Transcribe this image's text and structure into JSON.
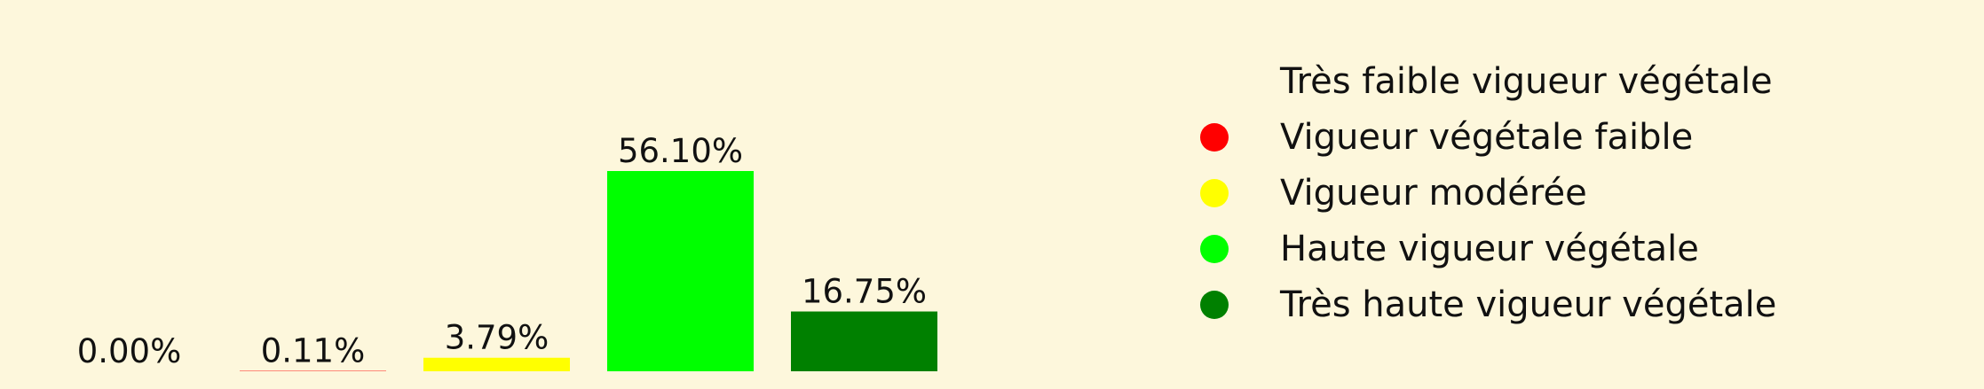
{
  "chart_data": {
    "type": "bar",
    "categories": [
      "Très faible vigueur végétale",
      "Vigueur végétale faible",
      "Vigueur modérée",
      "Haute vigueur végétale",
      "Très haute vigueur végétale"
    ],
    "values": [
      0.0,
      0.11,
      3.79,
      56.1,
      16.75
    ],
    "value_labels": [
      "0.00%",
      "0.11%",
      "3.79%",
      "56.10%",
      "16.75%"
    ],
    "colors": [
      "#fdf7dc",
      "#ff0000",
      "#ffff00",
      "#00ff00",
      "#008000"
    ],
    "title": "",
    "xlabel": "",
    "ylabel": "",
    "ylim": [
      0,
      56.1
    ],
    "grid": false,
    "legend_position": "right"
  },
  "legend": {
    "items": [
      {
        "label": "Très faible vigueur végétale",
        "color": "#fdf7dc"
      },
      {
        "label": "Vigueur végétale faible",
        "color": "#ff0000"
      },
      {
        "label": "Vigueur modérée",
        "color": "#ffff00"
      },
      {
        "label": "Haute vigueur végétale",
        "color": "#00ff00"
      },
      {
        "label": "Très haute vigueur végétale",
        "color": "#008000"
      }
    ]
  },
  "background": "#fdf7dc"
}
